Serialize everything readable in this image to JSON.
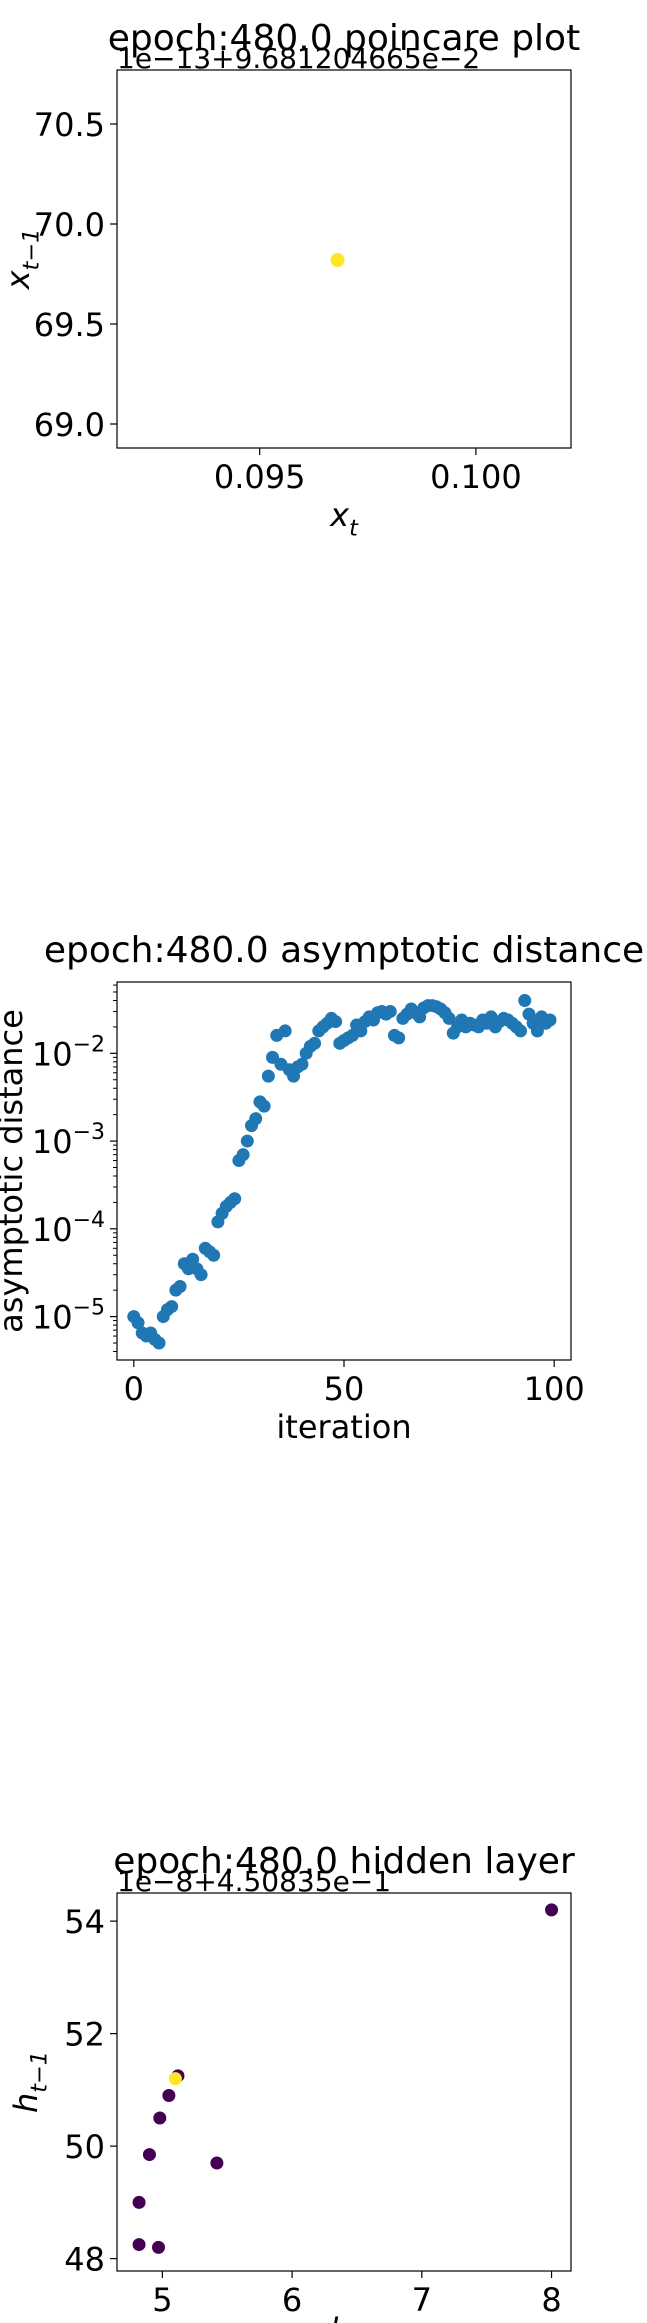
{
  "chart_data": [
    {
      "type": "scatter",
      "title": "epoch:480.0 poincare plot",
      "offset_label": "1e−13+9.681204665e−2",
      "xlabel": "x_t",
      "ylabel": "x_{t−1}",
      "xlim": [
        0.0917,
        0.1022
      ],
      "ylim": [
        68.88,
        70.77
      ],
      "xticks": [
        0.095,
        0.1
      ],
      "xtick_labels": [
        "0.095",
        "0.100"
      ],
      "yticks": [
        69.0,
        69.5,
        70.0,
        70.5
      ],
      "ytick_labels": [
        "69.0",
        "69.5",
        "70.0",
        "70.5"
      ],
      "points": [
        {
          "x": 0.0968,
          "y": 69.82,
          "color": "#fde725"
        }
      ]
    },
    {
      "type": "scatter",
      "title": "epoch:480.0 asymptotic distance",
      "xlabel": "iteration",
      "ylabel": "asymptotic distance",
      "yscale": "log",
      "xlim": [
        -4,
        104
      ],
      "ylim": [
        3.2e-06,
        0.065
      ],
      "xticks": [
        0,
        50,
        100
      ],
      "xtick_labels": [
        "0",
        "50",
        "100"
      ],
      "yticks": [
        1e-05,
        0.0001,
        0.001,
        0.01
      ],
      "ytick_labels": [
        "10",
        "10",
        "10",
        "10"
      ],
      "ytick_exponents": [
        "−5",
        "−4",
        "−3",
        "−2"
      ],
      "color": "#1f77b4",
      "x": [
        0,
        1,
        2,
        3,
        4,
        5,
        6,
        7,
        8,
        9,
        10,
        11,
        12,
        13,
        14,
        15,
        16,
        17,
        18,
        19,
        20,
        21,
        22,
        23,
        24,
        25,
        26,
        27,
        28,
        29,
        30,
        31,
        32,
        33,
        34,
        35,
        36,
        37,
        38,
        39,
        40,
        41,
        42,
        43,
        44,
        45,
        46,
        47,
        48,
        49,
        50,
        51,
        52,
        53,
        54,
        55,
        56,
        57,
        58,
        59,
        60,
        61,
        62,
        63,
        64,
        65,
        66,
        67,
        68,
        69,
        70,
        71,
        72,
        73,
        74,
        75,
        76,
        77,
        78,
        79,
        80,
        81,
        82,
        83,
        84,
        85,
        86,
        87,
        88,
        89,
        90,
        91,
        92,
        93,
        94,
        95,
        96,
        97,
        98,
        99
      ],
      "y": [
        1e-05,
        8.5e-06,
        6.5e-06,
        6e-06,
        6.5e-06,
        5.5e-06,
        5e-06,
        1e-05,
        1.2e-05,
        1.3e-05,
        2e-05,
        2.2e-05,
        4e-05,
        3.5e-05,
        4.5e-05,
        3.5e-05,
        3e-05,
        6e-05,
        5.5e-05,
        5e-05,
        0.00012,
        0.00015,
        0.00018,
        0.0002,
        0.00022,
        0.0006,
        0.0007,
        0.001,
        0.0015,
        0.0018,
        0.0028,
        0.0025,
        0.0055,
        0.009,
        0.016,
        0.0075,
        0.018,
        0.0065,
        0.0055,
        0.007,
        0.0075,
        0.01,
        0.012,
        0.013,
        0.018,
        0.02,
        0.022,
        0.025,
        0.023,
        0.013,
        0.014,
        0.015,
        0.016,
        0.021,
        0.018,
        0.023,
        0.026,
        0.024,
        0.029,
        0.03,
        0.028,
        0.03,
        0.016,
        0.015,
        0.025,
        0.028,
        0.032,
        0.029,
        0.026,
        0.033,
        0.035,
        0.035,
        0.034,
        0.032,
        0.029,
        0.025,
        0.017,
        0.02,
        0.024,
        0.02,
        0.022,
        0.021,
        0.02,
        0.024,
        0.022,
        0.026,
        0.02,
        0.023,
        0.025,
        0.024,
        0.022,
        0.02,
        0.018,
        0.04,
        0.028,
        0.022,
        0.018,
        0.026,
        0.022,
        0.024
      ]
    },
    {
      "type": "scatter",
      "title": "epoch:480.0 hidden layer",
      "offset_label": "1e−8+4.50835e−1",
      "x_offset_label": "1e−8+4.50835e−1",
      "xlabel": "h_t",
      "ylabel": "h_{t−1}",
      "xlim": [
        4.65,
        8.15
      ],
      "ylim": [
        47.78,
        54.5
      ],
      "xticks": [
        5,
        6,
        7,
        8
      ],
      "xtick_labels": [
        "5",
        "6",
        "7",
        "8"
      ],
      "yticks": [
        48,
        50,
        52,
        54
      ],
      "ytick_labels": [
        "48",
        "50",
        "52",
        "54"
      ],
      "points": [
        {
          "x": 8.0,
          "y": 54.2,
          "color": "#440154"
        },
        {
          "x": 4.82,
          "y": 48.25,
          "color": "#440154"
        },
        {
          "x": 4.97,
          "y": 48.2,
          "color": "#440154"
        },
        {
          "x": 4.82,
          "y": 49.0,
          "color": "#440154"
        },
        {
          "x": 4.9,
          "y": 49.85,
          "color": "#440154"
        },
        {
          "x": 4.98,
          "y": 50.5,
          "color": "#440154"
        },
        {
          "x": 5.05,
          "y": 50.9,
          "color": "#440154"
        },
        {
          "x": 5.42,
          "y": 49.7,
          "color": "#440154"
        },
        {
          "x": 5.12,
          "y": 51.25,
          "color": "#440154"
        },
        {
          "x": 5.1,
          "y": 51.2,
          "color": "#fde725"
        }
      ]
    }
  ]
}
